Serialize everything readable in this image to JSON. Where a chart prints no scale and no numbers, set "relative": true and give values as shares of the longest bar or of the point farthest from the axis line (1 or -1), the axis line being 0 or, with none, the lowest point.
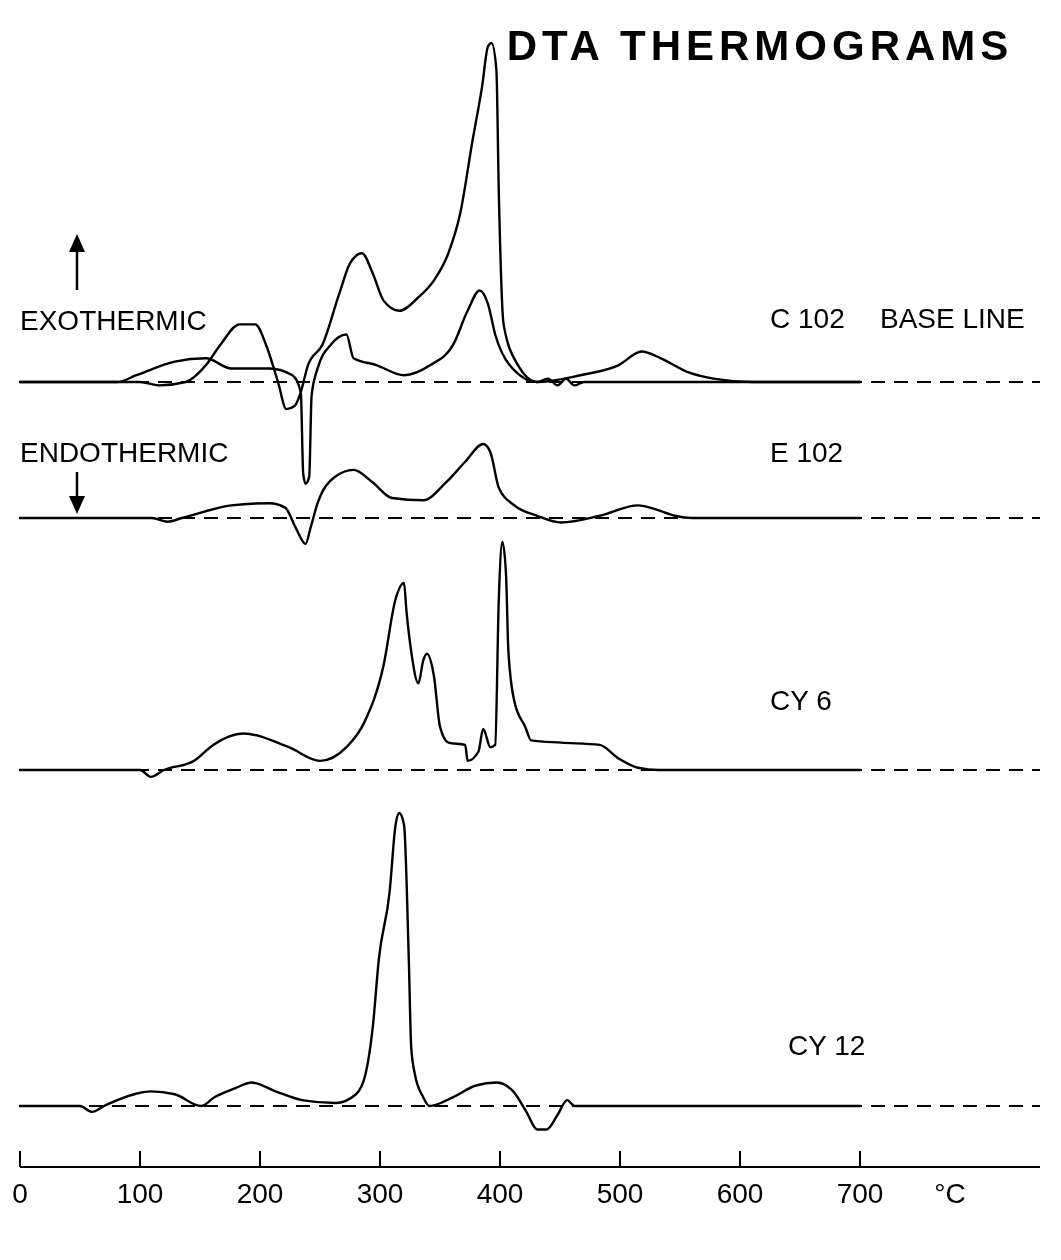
{
  "chart_data": [
    {
      "type": "line",
      "title": "DTA THERMOGRAMS",
      "annotations": [
        "BASE LINE",
        "EXOTHERMIC"
      ],
      "relative": true,
      "xlim": [
        0,
        850
      ],
      "tick_labels": false,
      "ref_lines": [
        {
          "axis": "y",
          "value": 0,
          "line_style": "dashed",
          "color": "#000000"
        }
      ],
      "series": [
        {
          "name": "C 102",
          "color": "#000000",
          "x": [
            0,
            100,
            116,
            138,
            155,
            167,
            183,
            196,
            205,
            215,
            222,
            229,
            234,
            240,
            252,
            266,
            275,
            285,
            294,
            303,
            316,
            332,
            345,
            357,
            367,
            377,
            385,
            390,
            393,
            397,
            399,
            403,
            415,
            431,
            440,
            448,
            455,
            462,
            470,
            550,
            700
          ],
          "values": [
            0,
            0,
            -0.01,
            0,
            0.05,
            0.11,
            0.17,
            0.17,
            0.11,
            0,
            -0.08,
            -0.07,
            -0.03,
            0.05,
            0.11,
            0.26,
            0.35,
            0.38,
            0.32,
            0.24,
            0.21,
            0.25,
            0.3,
            0.38,
            0.5,
            0.71,
            0.87,
            0.99,
            1,
            0.92,
            0.56,
            0.17,
            0.05,
            0,
            0.01,
            -0.01,
            0.01,
            -0.01,
            0,
            0,
            0
          ]
        },
        {
          "color": "#000000",
          "x": [
            0,
            81,
            97,
            129,
            155,
            176,
            208,
            227,
            234,
            236,
            238,
            241,
            243,
            248,
            259,
            272,
            278,
            297,
            320,
            342,
            361,
            373,
            383,
            390,
            396,
            408,
            431,
            467,
            499,
            518,
            534,
            556,
            578,
            610,
            700
          ],
          "values": [
            0,
            0,
            0.02,
            0.06,
            0.07,
            0.04,
            0.04,
            0.02,
            -0.03,
            -0.27,
            -0.3,
            -0.28,
            -0.04,
            0.04,
            0.11,
            0.14,
            0.07,
            0.05,
            0.02,
            0.05,
            0.11,
            0.21,
            0.27,
            0.23,
            0.14,
            0.05,
            0,
            0.02,
            0.05,
            0.09,
            0.07,
            0.03,
            0.01,
            0,
            0
          ]
        }
      ]
    },
    {
      "type": "line",
      "annotations": [
        "ENDOTHERMIC"
      ],
      "relative": true,
      "xlim": [
        0,
        850
      ],
      "tick_labels": false,
      "ref_lines": [
        {
          "axis": "y",
          "value": 0,
          "line_style": "dashed",
          "color": "#000000"
        }
      ],
      "series": [
        {
          "name": "E 102",
          "color": "#000000",
          "x": [
            0,
            110,
            123,
            135,
            176,
            208,
            221,
            230,
            238,
            242,
            248,
            262,
            278,
            294,
            310,
            336,
            355,
            371,
            386,
            392,
            399,
            412,
            431,
            451,
            483,
            515,
            531,
            546,
            560,
            700
          ],
          "values": [
            0,
            0,
            -0.05,
            0,
            0.17,
            0.2,
            0.14,
            -0.14,
            -0.35,
            -0.14,
            0.2,
            0.55,
            0.65,
            0.48,
            0.27,
            0.24,
            0.48,
            0.76,
            1,
            0.89,
            0.41,
            0.17,
            0.03,
            -0.06,
            0.03,
            0.17,
            0.11,
            0.03,
            0,
            0
          ]
        }
      ]
    },
    {
      "type": "line",
      "relative": true,
      "xlim": [
        0,
        850
      ],
      "tick_labels": false,
      "ref_lines": [
        {
          "axis": "y",
          "value": 0,
          "line_style": "dashed",
          "color": "#000000"
        }
      ],
      "series": [
        {
          "name": "CY 6",
          "color": "#000000",
          "x": [
            0,
            100,
            109,
            120,
            145,
            161,
            186,
            224,
            250,
            272,
            287,
            303,
            313,
            320,
            322,
            326,
            332,
            336,
            339,
            345,
            350,
            357,
            371,
            373,
            382,
            386,
            392,
            396,
            399,
            402,
            405,
            407,
            412,
            421,
            426,
            451,
            483,
            499,
            515,
            532,
            700
          ],
          "values": [
            0,
            0,
            -0.03,
            0,
            0.04,
            0.11,
            0.16,
            0.1,
            0.04,
            0.1,
            0.21,
            0.46,
            0.75,
            0.82,
            0.7,
            0.52,
            0.38,
            0.48,
            0.51,
            0.41,
            0.19,
            0.12,
            0.11,
            0.04,
            0.08,
            0.18,
            0.1,
            0.11,
            0.75,
            1,
            0.86,
            0.52,
            0.3,
            0.19,
            0.13,
            0.12,
            0.11,
            0.05,
            0.01,
            0,
            0
          ]
        }
      ]
    },
    {
      "type": "line",
      "xlabel": "°C",
      "relative": true,
      "xlim": [
        0,
        850
      ],
      "xticks": [
        0,
        100,
        200,
        300,
        400,
        500,
        600,
        700
      ],
      "tick_labels": "x",
      "ref_lines": [
        {
          "axis": "y",
          "value": 0,
          "line_style": "dashed",
          "color": "#000000"
        }
      ],
      "series": [
        {
          "name": "CY 12",
          "color": "#000000",
          "x": [
            0,
            50,
            60,
            70,
            81,
            109,
            129,
            151,
            162,
            179,
            193,
            213,
            235,
            263,
            280,
            288,
            294,
            299,
            308,
            313,
            316,
            320,
            324,
            326,
            329,
            336,
            341,
            361,
            380,
            397,
            411,
            422,
            431,
            439,
            448,
            456,
            462,
            700
          ],
          "values": [
            0,
            0,
            -0.02,
            0,
            0.02,
            0.05,
            0.04,
            0,
            0.03,
            0.06,
            0.08,
            0.05,
            0.02,
            0.01,
            0.04,
            0.11,
            0.27,
            0.5,
            0.73,
            0.96,
            1,
            0.96,
            0.5,
            0.2,
            0.11,
            0.03,
            0,
            0.03,
            0.07,
            0.08,
            0.05,
            -0.02,
            -0.08,
            -0.08,
            -0.03,
            0.02,
            0,
            0
          ]
        }
      ]
    }
  ]
}
